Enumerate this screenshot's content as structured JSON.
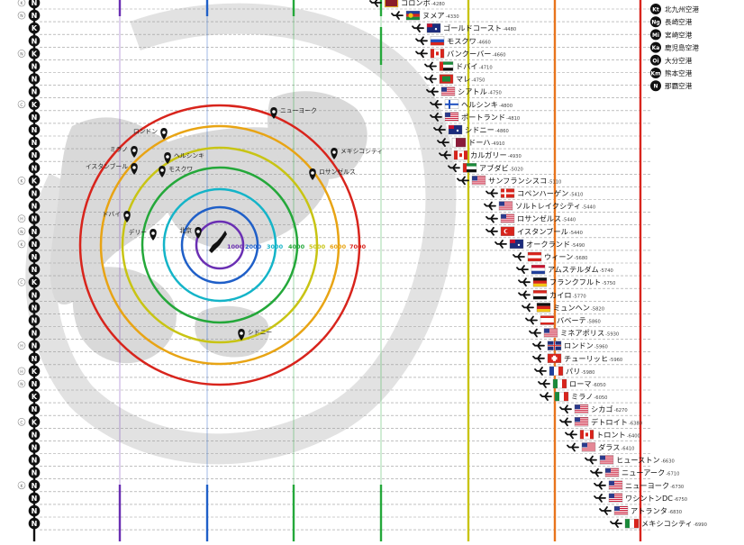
{
  "colors": {
    "ring": [
      "#6a2fb3",
      "#1f5fc8",
      "#14b4c8",
      "#24a83a",
      "#c8c414",
      "#e8a414",
      "#e8741c",
      "#d8241c"
    ],
    "airline_badge": "#111111",
    "distance_label": [
      "#6a2fb3",
      "#1f5fc8",
      "#14b4c8",
      "#24a83a",
      "#c8c414",
      "#e8a414",
      "#e8741c",
      "#d8241c"
    ]
  },
  "ring_labels": [
    "1000",
    "2000",
    "3000",
    "4000",
    "5000",
    "6000",
    "7000"
  ],
  "map_cities": [
    {
      "name": "ニューヨーク"
    },
    {
      "name": "ロンドン"
    },
    {
      "name": "ミラノ"
    },
    {
      "name": "ヘルシンキ"
    },
    {
      "name": "メキシコシティ"
    },
    {
      "name": "イスタンブール"
    },
    {
      "name": "モスクワ"
    },
    {
      "name": "ロサンゼルス"
    },
    {
      "name": "ドバイ"
    },
    {
      "name": "デリー"
    },
    {
      "name": "北京"
    },
    {
      "name": "シドニー"
    }
  ],
  "legend": [
    {
      "badge": "Kt",
      "label": "北九州空港"
    },
    {
      "badge": "Ng",
      "label": "長崎空港"
    },
    {
      "badge": "Mi",
      "label": "宮崎空港"
    },
    {
      "badge": "Ka",
      "label": "鹿児島空港"
    },
    {
      "badge": "Oi",
      "label": "大分空港"
    },
    {
      "badge": "Km",
      "label": "熊本空港"
    },
    {
      "badge": "N",
      "label": "那覇空港"
    }
  ],
  "left_badges": [
    {
      "small": "K",
      "main": "N"
    },
    {
      "small": "N",
      "main": "N"
    },
    {
      "small": "",
      "main": "K"
    },
    {
      "small": "",
      "main": "N"
    },
    {
      "small": "N",
      "main": "K"
    },
    {
      "small": "",
      "main": "N"
    },
    {
      "small": "",
      "main": "N"
    },
    {
      "small": "",
      "main": "N"
    },
    {
      "small": "C",
      "main": "K"
    },
    {
      "small": "",
      "main": "N"
    },
    {
      "small": "",
      "main": "N"
    },
    {
      "small": "",
      "main": "N"
    },
    {
      "small": "",
      "main": "N"
    },
    {
      "small": "",
      "main": "N"
    },
    {
      "small": "K",
      "main": "K"
    },
    {
      "small": "",
      "main": "N"
    },
    {
      "small": "",
      "main": "N"
    },
    {
      "small": "H",
      "main": "N"
    },
    {
      "small": "N",
      "main": "N"
    },
    {
      "small": "K",
      "main": "N"
    },
    {
      "small": "",
      "main": "N"
    },
    {
      "small": "",
      "main": "N"
    },
    {
      "small": "C",
      "main": "K"
    },
    {
      "small": "",
      "main": "N"
    },
    {
      "small": "",
      "main": "N"
    },
    {
      "small": "",
      "main": "N"
    },
    {
      "small": "",
      "main": "N"
    },
    {
      "small": "H",
      "main": "N"
    },
    {
      "small": "",
      "main": "N"
    },
    {
      "small": "H",
      "main": "K"
    },
    {
      "small": "N",
      "main": "N"
    },
    {
      "small": "",
      "main": "K"
    },
    {
      "small": "",
      "main": "N"
    },
    {
      "small": "C",
      "main": "K"
    },
    {
      "small": "",
      "main": "N"
    },
    {
      "small": "",
      "main": "N"
    },
    {
      "small": "",
      "main": "N"
    },
    {
      "small": "",
      "main": "N"
    },
    {
      "small": "K",
      "main": "N"
    },
    {
      "small": "",
      "main": "N"
    },
    {
      "small": "",
      "main": "N"
    },
    {
      "small": "",
      "main": "N"
    }
  ],
  "destinations": [
    {
      "name": "コロンボ",
      "dist": "-4280",
      "flag": "lk"
    },
    {
      "name": "ヌメア",
      "dist": "-4330",
      "flag": "nc"
    },
    {
      "name": "ゴールドコースト",
      "dist": "-4480",
      "flag": "au"
    },
    {
      "name": "モスクワ",
      "dist": "-4660",
      "flag": "ru"
    },
    {
      "name": "バンクーバー",
      "dist": "-4660",
      "flag": "ca"
    },
    {
      "name": "ドバイ",
      "dist": "-4710",
      "flag": "ae"
    },
    {
      "name": "マレ",
      "dist": "-4750",
      "flag": "mv"
    },
    {
      "name": "シアトル",
      "dist": "-4750",
      "flag": "us"
    },
    {
      "name": "ヘルシンキ",
      "dist": "-4800",
      "flag": "fi"
    },
    {
      "name": "ポートランド",
      "dist": "-4810",
      "flag": "us"
    },
    {
      "name": "シドニー",
      "dist": "-4860",
      "flag": "au"
    },
    {
      "name": "ドーハ",
      "dist": "-4910",
      "flag": "qa"
    },
    {
      "name": "カルガリー",
      "dist": "-4930",
      "flag": "ca"
    },
    {
      "name": "アブダビ",
      "dist": "-5020",
      "flag": "ae"
    },
    {
      "name": "サンフランシスコ",
      "dist": "-5110",
      "flag": "us"
    },
    {
      "name": "コペンハーゲン",
      "dist": "-5410",
      "flag": "dk"
    },
    {
      "name": "ソルトレイクシティ",
      "dist": "-5440",
      "flag": "us"
    },
    {
      "name": "ロサンゼルス",
      "dist": "-5440",
      "flag": "us"
    },
    {
      "name": "イスタンブール",
      "dist": "-5440",
      "flag": "tr"
    },
    {
      "name": "オークランド",
      "dist": "-5490",
      "flag": "nz"
    },
    {
      "name": "ウィーン",
      "dist": "-5680",
      "flag": "at"
    },
    {
      "name": "アムステルダム",
      "dist": "-5740",
      "flag": "nl"
    },
    {
      "name": "フランクフルト",
      "dist": "-5750",
      "flag": "de"
    },
    {
      "name": "カイロ",
      "dist": "-5770",
      "flag": "eg"
    },
    {
      "name": "ミュンヘン",
      "dist": "-5820",
      "flag": "de"
    },
    {
      "name": "バベーテ",
      "dist": "-5860",
      "flag": "pf"
    },
    {
      "name": "ミネアポリス",
      "dist": "-5930",
      "flag": "us"
    },
    {
      "name": "ロンドン",
      "dist": "-5960",
      "flag": "gb"
    },
    {
      "name": "チューリッヒ",
      "dist": "-5960",
      "flag": "ch"
    },
    {
      "name": "パリ",
      "dist": "-5980",
      "flag": "fr"
    },
    {
      "name": "ローマ",
      "dist": "-6050",
      "flag": "it"
    },
    {
      "name": "ミラノ",
      "dist": "-6050",
      "flag": "it"
    },
    {
      "name": "シカゴ",
      "dist": "-6270",
      "flag": "us"
    },
    {
      "name": "デトロイト",
      "dist": "-6380",
      "flag": "us"
    },
    {
      "name": "トロント",
      "dist": "-6400",
      "flag": "ca"
    },
    {
      "name": "ダラス",
      "dist": "-6410",
      "flag": "us"
    },
    {
      "name": "ヒューストン",
      "dist": "-6630",
      "flag": "us"
    },
    {
      "name": "ニューアーク",
      "dist": "-6710",
      "flag": "us"
    },
    {
      "name": "ニューヨーク",
      "dist": "-6730",
      "flag": "us"
    },
    {
      "name": "ワシントンDC",
      "dist": "-6750",
      "flag": "us"
    },
    {
      "name": "アトランタ",
      "dist": "-6830",
      "flag": "us"
    },
    {
      "name": "メキシコシティ",
      "dist": "-6990",
      "flag": "mx"
    }
  ]
}
